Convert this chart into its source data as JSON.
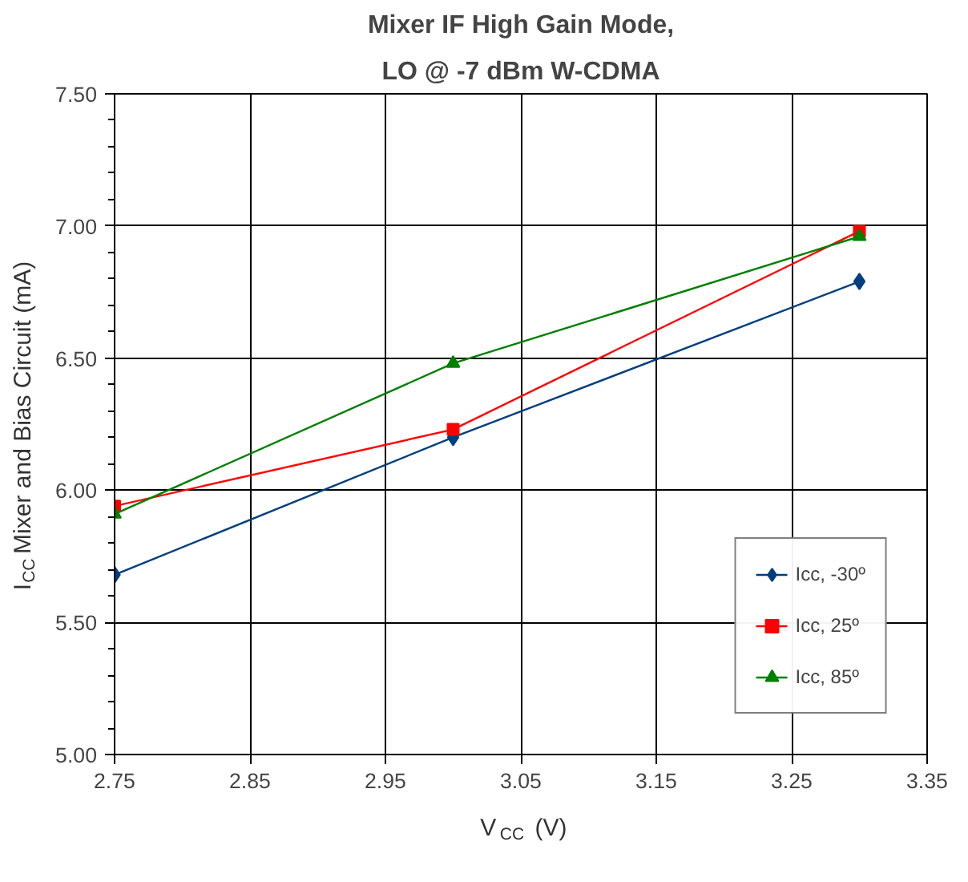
{
  "chart_data": {
    "type": "line",
    "title": "Mixer IF High Gain Mode,",
    "subtitle": "LO @ -7 dBm W-CDMA",
    "xlabel": "V$_{CC}$ (V)",
    "ylabel": "I$_{CC}$ Mixer and Bias Circuit (mA)",
    "x": [
      2.75,
      3.0,
      3.3
    ],
    "series": [
      {
        "name": "Icc, -30º",
        "color": "#003f7f",
        "marker": "diamond",
        "values": [
          5.68,
          6.2,
          6.79
        ]
      },
      {
        "name": "Icc, 25º",
        "color": "#ff0000",
        "marker": "square",
        "values": [
          5.94,
          6.23,
          6.98
        ]
      },
      {
        "name": "Icc, 85º",
        "color": "#008000",
        "marker": "triangle",
        "values": [
          5.91,
          6.48,
          6.96
        ]
      }
    ],
    "xlim": [
      2.75,
      3.35
    ],
    "xticks": [
      {
        "value": 2.75,
        "label": "2.75"
      },
      {
        "value": 2.85,
        "label": "2.85"
      },
      {
        "value": 2.95,
        "label": "2.95"
      },
      {
        "value": 3.05,
        "label": "3.05"
      },
      {
        "value": 3.15,
        "label": "3.15"
      },
      {
        "value": 3.25,
        "label": "3.25"
      },
      {
        "value": 3.35,
        "label": "3.35"
      }
    ],
    "ylim": [
      5.0,
      7.5
    ],
    "yticks": [
      {
        "value": 5.0,
        "label": "5.00"
      },
      {
        "value": 5.5,
        "label": "5.50"
      },
      {
        "value": 6.0,
        "label": "6.00"
      },
      {
        "value": 6.5,
        "label": "6.50"
      },
      {
        "value": 7.0,
        "label": "7.00"
      },
      {
        "value": 7.5,
        "label": "7.50"
      }
    ],
    "grid": true,
    "legend": "bottom right",
    "line_style": "solid"
  }
}
